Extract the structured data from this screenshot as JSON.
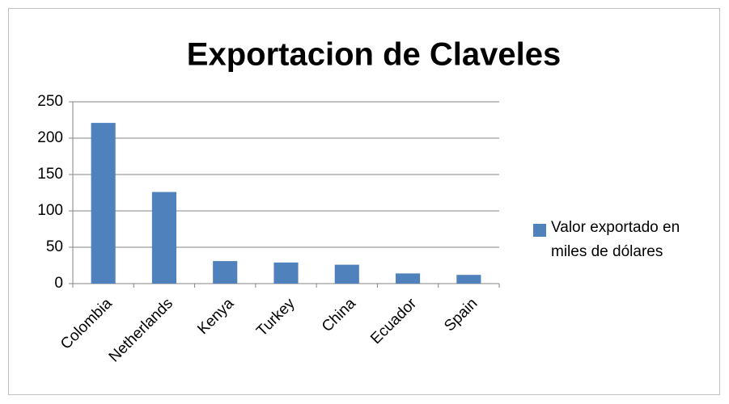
{
  "chart_data": {
    "type": "bar",
    "title": "Exportacion de Claveles",
    "categories": [
      "Colombia",
      "Netherlands",
      "Kenya",
      "Turkey",
      "China",
      "Ecuador",
      "Spain"
    ],
    "series": [
      {
        "name": "Valor exportado en miles de dólares",
        "color": "#4f81bd",
        "values": [
          221,
          126,
          31,
          29,
          26,
          14,
          12
        ]
      }
    ],
    "ylim": [
      0,
      250
    ],
    "yticks": [
      0,
      50,
      100,
      150,
      200,
      250
    ],
    "grid": true,
    "legend": "right"
  }
}
